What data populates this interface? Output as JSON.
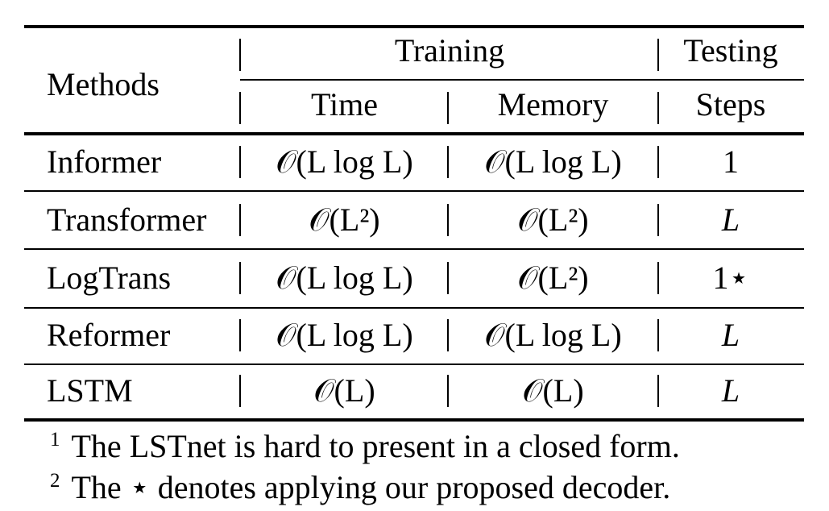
{
  "table": {
    "header": {
      "methods": "Methods",
      "training": "Training",
      "testing": "Testing",
      "time": "Time",
      "memory": "Memory",
      "steps": "Steps"
    },
    "rows": [
      {
        "method": "Informer",
        "time": "𝒪(L log L)",
        "memory": "𝒪(L log L)",
        "steps": "1"
      },
      {
        "method": "Transformer",
        "time": "𝒪(L²)",
        "memory": "𝒪(L²)",
        "steps": "L"
      },
      {
        "method": "LogTrans",
        "time": "𝒪(L log L)",
        "memory": "𝒪(L²)",
        "steps": "1⋆"
      },
      {
        "method": "Reformer",
        "time": "𝒪(L log L)",
        "memory": "𝒪(L log L)",
        "steps": "L"
      },
      {
        "method": "LSTM",
        "time": "𝒪(L)",
        "memory": "𝒪(L)",
        "steps": "L"
      }
    ]
  },
  "footnotes": [
    {
      "mark": "1",
      "text": "The LSTnet is hard to present in a closed form."
    },
    {
      "mark": "2",
      "text": "The ⋆ denotes applying our proposed decoder."
    }
  ]
}
